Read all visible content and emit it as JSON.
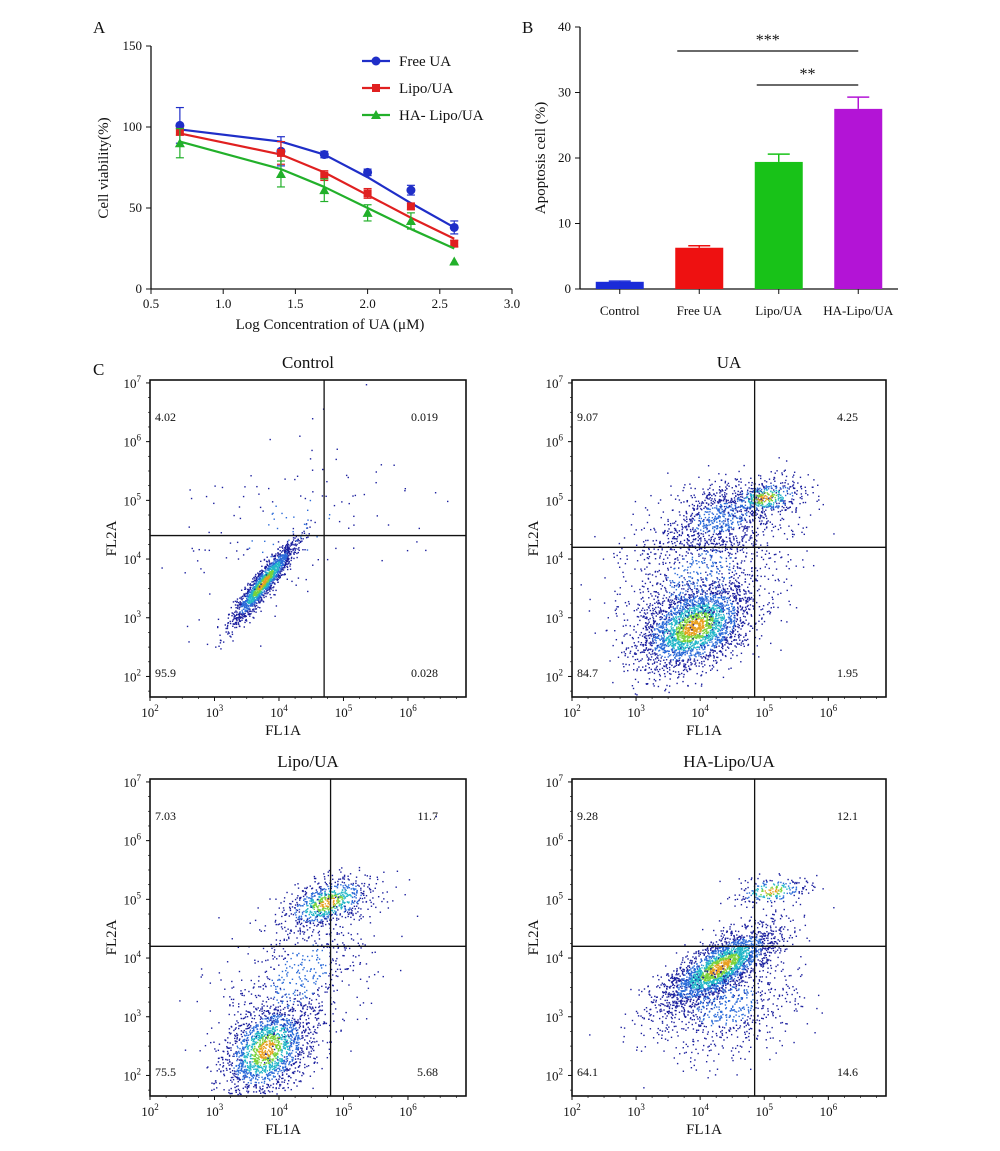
{
  "panel_labels": {
    "a": "A",
    "b": "B",
    "c": "C"
  },
  "chart_data": [
    {
      "type": "line",
      "panel": "A",
      "xlabel": "Log Concentration of UA (μM)",
      "ylabel": "Cell viability(%)",
      "xlim": [
        0.5,
        3.0
      ],
      "ylim": [
        0,
        150
      ],
      "xticks": [
        "0.5",
        "1.0",
        "1.5",
        "2.0",
        "2.5",
        "3.0"
      ],
      "yticks": [
        "0",
        "50",
        "100",
        "150"
      ],
      "legend_position": "top-right",
      "x": [
        0.7,
        1.4,
        1.7,
        2.0,
        2.3,
        2.6
      ],
      "series": [
        {
          "name": "Free UA",
          "color": "#1f2ec8",
          "marker": "circle",
          "values": [
            101,
            85,
            83,
            72,
            61,
            38
          ],
          "err": [
            11,
            9,
            2,
            2,
            3,
            4
          ],
          "fit": [
            98.5,
            91,
            83,
            69,
            53,
            38
          ]
        },
        {
          "name": "Lipo/UA",
          "color": "#e02020",
          "marker": "square",
          "values": [
            97,
            84,
            70,
            59,
            51,
            28
          ],
          "err": [
            2,
            7,
            3,
            3,
            2,
            2
          ],
          "fit": [
            96,
            83,
            72,
            58,
            44,
            31
          ]
        },
        {
          "name": "HA- Lipo/UA",
          "color": "#22b02a",
          "marker": "triangle",
          "values": [
            90,
            71,
            61,
            47,
            42,
            17
          ],
          "err": [
            9,
            8,
            7,
            5,
            5,
            0
          ],
          "fit": [
            91,
            74,
            63,
            50,
            37,
            25
          ]
        }
      ]
    },
    {
      "type": "bar",
      "panel": "B",
      "ylabel": "Apoptosis cell (%)",
      "ylim": [
        0,
        40
      ],
      "yticks": [
        "0",
        "10",
        "20",
        "30",
        "40"
      ],
      "categories": [
        "Control",
        "Free UA",
        "Lipo/UA",
        "HA-Lipo/UA"
      ],
      "values": [
        1.1,
        6.3,
        19.4,
        27.5
      ],
      "err": [
        0.1,
        0.3,
        1.2,
        1.8
      ],
      "colors": [
        "#1a2bd8",
        "#ee1111",
        "#18c218",
        "#b314d6"
      ],
      "significance": [
        {
          "label": "***",
          "from": 1,
          "to": 3
        },
        {
          "label": "**",
          "from": 2,
          "to": 3
        }
      ]
    },
    {
      "type": "scatter",
      "panel": "C",
      "xlabel": "FL1A",
      "ylabel": "FL2A",
      "axis_scale": "log",
      "xticks": [
        "10^2",
        "10^3",
        "10^4",
        "10^5",
        "10^6"
      ],
      "yticks": [
        "10^2",
        "10^3",
        "10^4",
        "10^5",
        "10^6",
        "10^7"
      ],
      "plots": [
        {
          "title": "Control",
          "quadrants": {
            "ul": "4.02",
            "ur": "0.019",
            "ll": "95.9",
            "lr": "0.028"
          },
          "gate_log": [
            4.7,
            4.4
          ]
        },
        {
          "title": "UA",
          "quadrants": {
            "ul": "9.07",
            "ur": "4.25",
            "ll": "84.7",
            "lr": "1.95"
          },
          "gate_log": [
            4.85,
            4.2
          ]
        },
        {
          "title": "Lipo/UA",
          "quadrants": {
            "ul": "7.03",
            "ur": "11.7",
            "ll": "75.5",
            "lr": "5.68"
          },
          "gate_log": [
            4.8,
            4.2
          ]
        },
        {
          "title": "HA-Lipo/UA",
          "quadrants": {
            "ul": "9.28",
            "ur": "12.1",
            "ll": "64.1",
            "lr": "14.6"
          },
          "gate_log": [
            4.85,
            4.2
          ]
        }
      ]
    }
  ]
}
